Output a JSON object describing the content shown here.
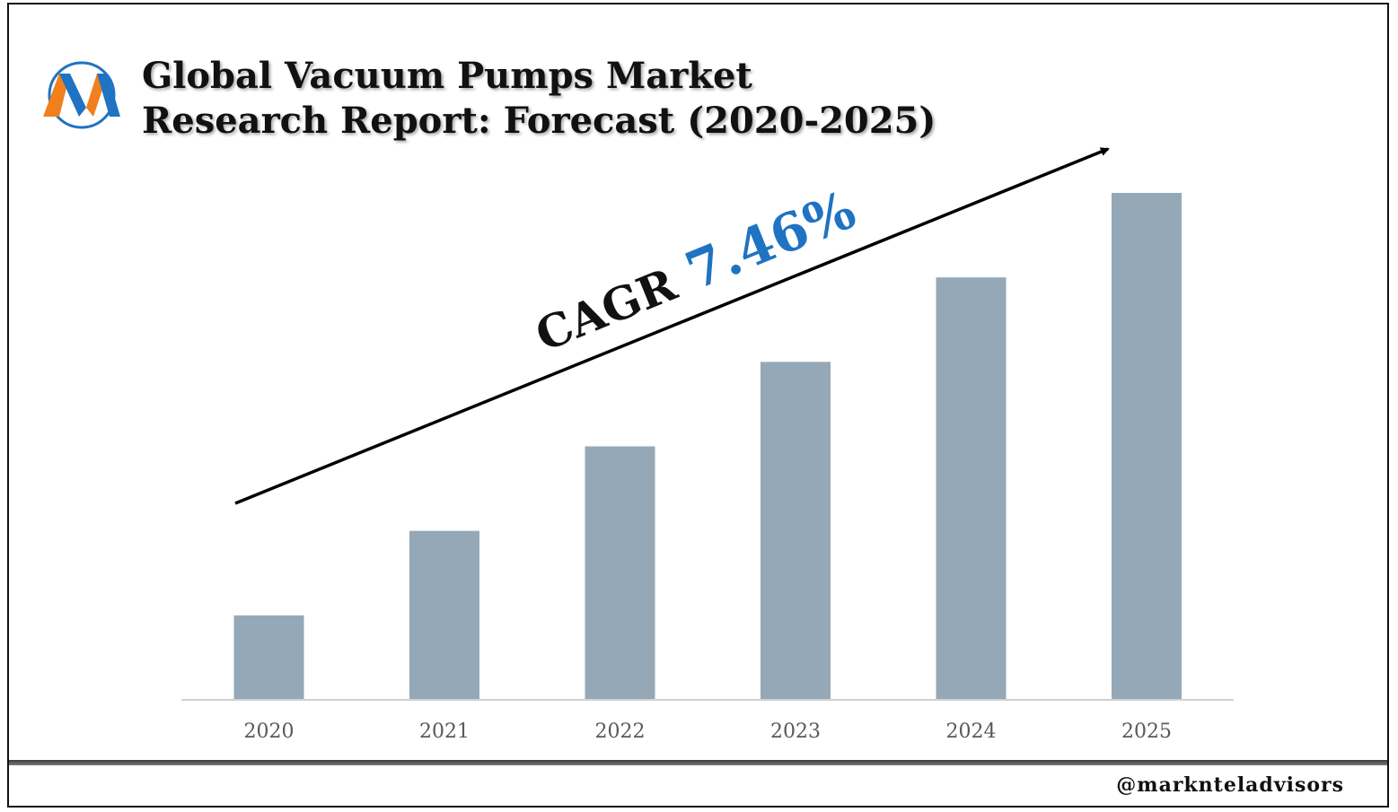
{
  "header": {
    "title_line1": "Global Vacuum Pumps Market",
    "title_line2": "Research Report: Forecast (2020-2025)",
    "logo_icon": "marknteladvisors-m-logo-icon"
  },
  "annotation": {
    "cagr_label": "CAGR",
    "cagr_value": "7.46%"
  },
  "footer": {
    "handle": "@marknteladvisors"
  },
  "colors": {
    "bar": "#94a8b8",
    "cagr_value": "#1f73c2",
    "logo_orange": "#f07f1e",
    "logo_blue": "#1f73c2"
  },
  "chart_data": {
    "type": "bar",
    "categories": [
      "2020",
      "2021",
      "2022",
      "2023",
      "2024",
      "2025"
    ],
    "values": [
      1,
      2,
      3,
      4,
      5,
      6
    ],
    "title": "Global Vacuum Pumps Market Research Report: Forecast (2020-2025)",
    "xlabel": "",
    "ylabel": "",
    "ylim": [
      0,
      6
    ],
    "grid": false,
    "legend": "none",
    "annotations": [
      "CAGR 7.46%"
    ]
  }
}
